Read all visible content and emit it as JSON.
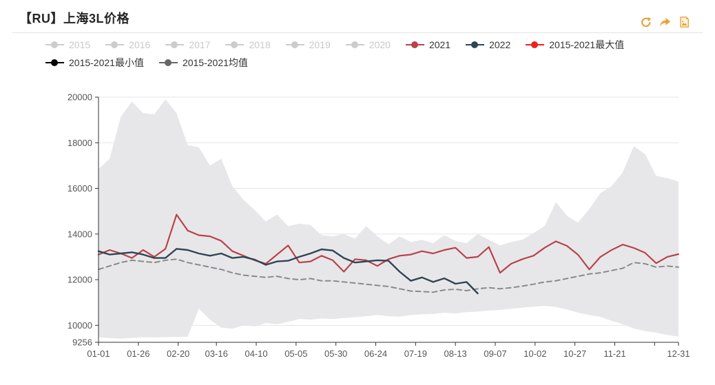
{
  "header": {
    "title": "【RU】上海3L价格",
    "toolbar": {
      "accent_color": "#e9a23b",
      "icons": [
        "refresh",
        "share-forward",
        "save-image"
      ]
    }
  },
  "legend": {
    "items": [
      {
        "label": "2015",
        "color": "#cccccc",
        "enabled": false
      },
      {
        "label": "2016",
        "color": "#cccccc",
        "enabled": false
      },
      {
        "label": "2017",
        "color": "#cccccc",
        "enabled": false
      },
      {
        "label": "2018",
        "color": "#cccccc",
        "enabled": false
      },
      {
        "label": "2019",
        "color": "#cccccc",
        "enabled": false
      },
      {
        "label": "2020",
        "color": "#cccccc",
        "enabled": false
      },
      {
        "label": "2021",
        "color": "#b9424b",
        "enabled": true
      },
      {
        "label": "2022",
        "color": "#2f4554",
        "enabled": true
      },
      {
        "label": "2015-2021最大值",
        "color": "#ec2222",
        "enabled": true
      },
      {
        "label": "2015-2021最小值",
        "color": "#000000",
        "enabled": true
      },
      {
        "label": "2015-2021均值",
        "color": "#666666",
        "enabled": true
      }
    ]
  },
  "chart_data": {
    "type": "line",
    "title": "【RU】上海3L价格",
    "xlabel": "",
    "ylabel": "",
    "ylim": [
      9256,
      20000
    ],
    "grid": true,
    "legend_position": "top",
    "band_fill": "#e7e7e9",
    "y_ticks": [
      {
        "value": 9256,
        "label": "9256"
      },
      {
        "value": 10000,
        "label": "10000"
      },
      {
        "value": 12000,
        "label": "12000"
      },
      {
        "value": 14000,
        "label": "14000"
      },
      {
        "value": 16000,
        "label": "16000"
      },
      {
        "value": 18000,
        "label": "18000"
      },
      {
        "value": 20000,
        "label": "20000"
      }
    ],
    "x_ticks": [
      {
        "day": 1,
        "label": "01-01"
      },
      {
        "day": 26,
        "label": "01-26"
      },
      {
        "day": 51,
        "label": "02-20"
      },
      {
        "day": 75,
        "label": "03-16"
      },
      {
        "day": 100,
        "label": "04-10"
      },
      {
        "day": 125,
        "label": "05-05"
      },
      {
        "day": 150,
        "label": "05-30"
      },
      {
        "day": 175,
        "label": "06-24"
      },
      {
        "day": 200,
        "label": "07-19"
      },
      {
        "day": 225,
        "label": "08-13"
      },
      {
        "day": 250,
        "label": "09-07"
      },
      {
        "day": 275,
        "label": "10-02"
      },
      {
        "day": 300,
        "label": "10-27"
      },
      {
        "day": 325,
        "label": "11-21"
      },
      {
        "day": 350,
        "label": ""
      },
      {
        "day": 365,
        "label": "12-31"
      }
    ],
    "x_days": [
      1,
      8,
      15,
      22,
      29,
      36,
      43,
      50,
      57,
      64,
      71,
      78,
      85,
      92,
      99,
      106,
      113,
      120,
      127,
      134,
      141,
      148,
      155,
      162,
      169,
      176,
      183,
      190,
      197,
      204,
      211,
      218,
      225,
      232,
      239,
      246,
      253,
      260,
      267,
      274,
      281,
      288,
      295,
      302,
      309,
      316,
      323,
      330,
      337,
      344,
      351,
      358,
      365
    ],
    "series": [
      {
        "name": "2015-2021最大值",
        "role": "max",
        "display": "band-top",
        "color": "#ec2222",
        "values": [
          16850,
          17300,
          19150,
          19800,
          19300,
          19250,
          19900,
          19300,
          17900,
          17800,
          17000,
          17300,
          16100,
          15500,
          15050,
          14550,
          14850,
          14350,
          14450,
          14400,
          13950,
          13900,
          14000,
          13800,
          14350,
          13900,
          13550,
          13900,
          13650,
          13750,
          13600,
          13950,
          13700,
          13600,
          14000,
          13750,
          13500,
          13650,
          13750,
          14050,
          14350,
          15400,
          14800,
          14500,
          15100,
          15800,
          16100,
          16700,
          17850,
          17500,
          16550,
          16450,
          16300
        ]
      },
      {
        "name": "2015-2021最小值",
        "role": "min",
        "display": "band-bottom",
        "color": "#000000",
        "values": [
          9470,
          9440,
          9420,
          9450,
          9480,
          9470,
          9480,
          9490,
          9500,
          10730,
          10250,
          9900,
          9850,
          10000,
          9950,
          10100,
          10050,
          10150,
          10280,
          10250,
          10300,
          10280,
          10320,
          10350,
          10400,
          10450,
          10400,
          10380,
          10450,
          10480,
          10500,
          10550,
          10520,
          10580,
          10600,
          10650,
          10670,
          10720,
          10780,
          10820,
          10850,
          10800,
          10700,
          10550,
          10450,
          10370,
          10200,
          10050,
          9860,
          9750,
          9680,
          9580,
          9500
        ]
      },
      {
        "name": "2015-2021均值",
        "role": "mean",
        "display": "dashed-line",
        "color": "#8a8a8a",
        "values": [
          12450,
          12600,
          12750,
          12850,
          12800,
          12750,
          12850,
          12900,
          12750,
          12650,
          12550,
          12450,
          12300,
          12200,
          12150,
          12100,
          12150,
          12050,
          12000,
          12050,
          11950,
          11950,
          11900,
          11850,
          11800,
          11750,
          11700,
          11600,
          11500,
          11480,
          11450,
          11550,
          11580,
          11520,
          11600,
          11650,
          11600,
          11650,
          11720,
          11800,
          11900,
          11950,
          12050,
          12150,
          12250,
          12300,
          12400,
          12500,
          12750,
          12700,
          12550,
          12600,
          12550
        ]
      },
      {
        "name": "2021",
        "role": "y2021",
        "display": "line",
        "color": "#b9424b",
        "values": [
          13100,
          13300,
          13150,
          12950,
          13300,
          13000,
          13350,
          14850,
          14150,
          13950,
          13900,
          13700,
          13250,
          13050,
          12850,
          12700,
          13100,
          13500,
          12750,
          12800,
          13050,
          12850,
          12350,
          12900,
          12850,
          12600,
          12900,
          13050,
          13100,
          13250,
          13150,
          13300,
          13400,
          12950,
          13000,
          13430,
          12300,
          12700,
          12900,
          13050,
          13400,
          13680,
          13480,
          13090,
          12450,
          13000,
          13300,
          13540,
          13390,
          13180,
          12720,
          13000,
          13120
        ]
      },
      {
        "name": "2022",
        "role": "y2022",
        "display": "line",
        "color": "#2f4554",
        "values": [
          13250,
          13100,
          13150,
          13200,
          13100,
          12950,
          12950,
          13350,
          13300,
          13150,
          13050,
          13150,
          12950,
          13000,
          12880,
          12650,
          12800,
          12830,
          13000,
          13150,
          13330,
          13280,
          12950,
          12750,
          12800,
          12850,
          12830,
          12350,
          11950,
          12100,
          11900,
          12060,
          11820,
          11900,
          11400,
          null,
          null,
          null,
          null,
          null,
          null,
          null,
          null,
          null,
          null,
          null,
          null,
          null,
          null,
          null,
          null,
          null,
          null
        ]
      }
    ]
  }
}
